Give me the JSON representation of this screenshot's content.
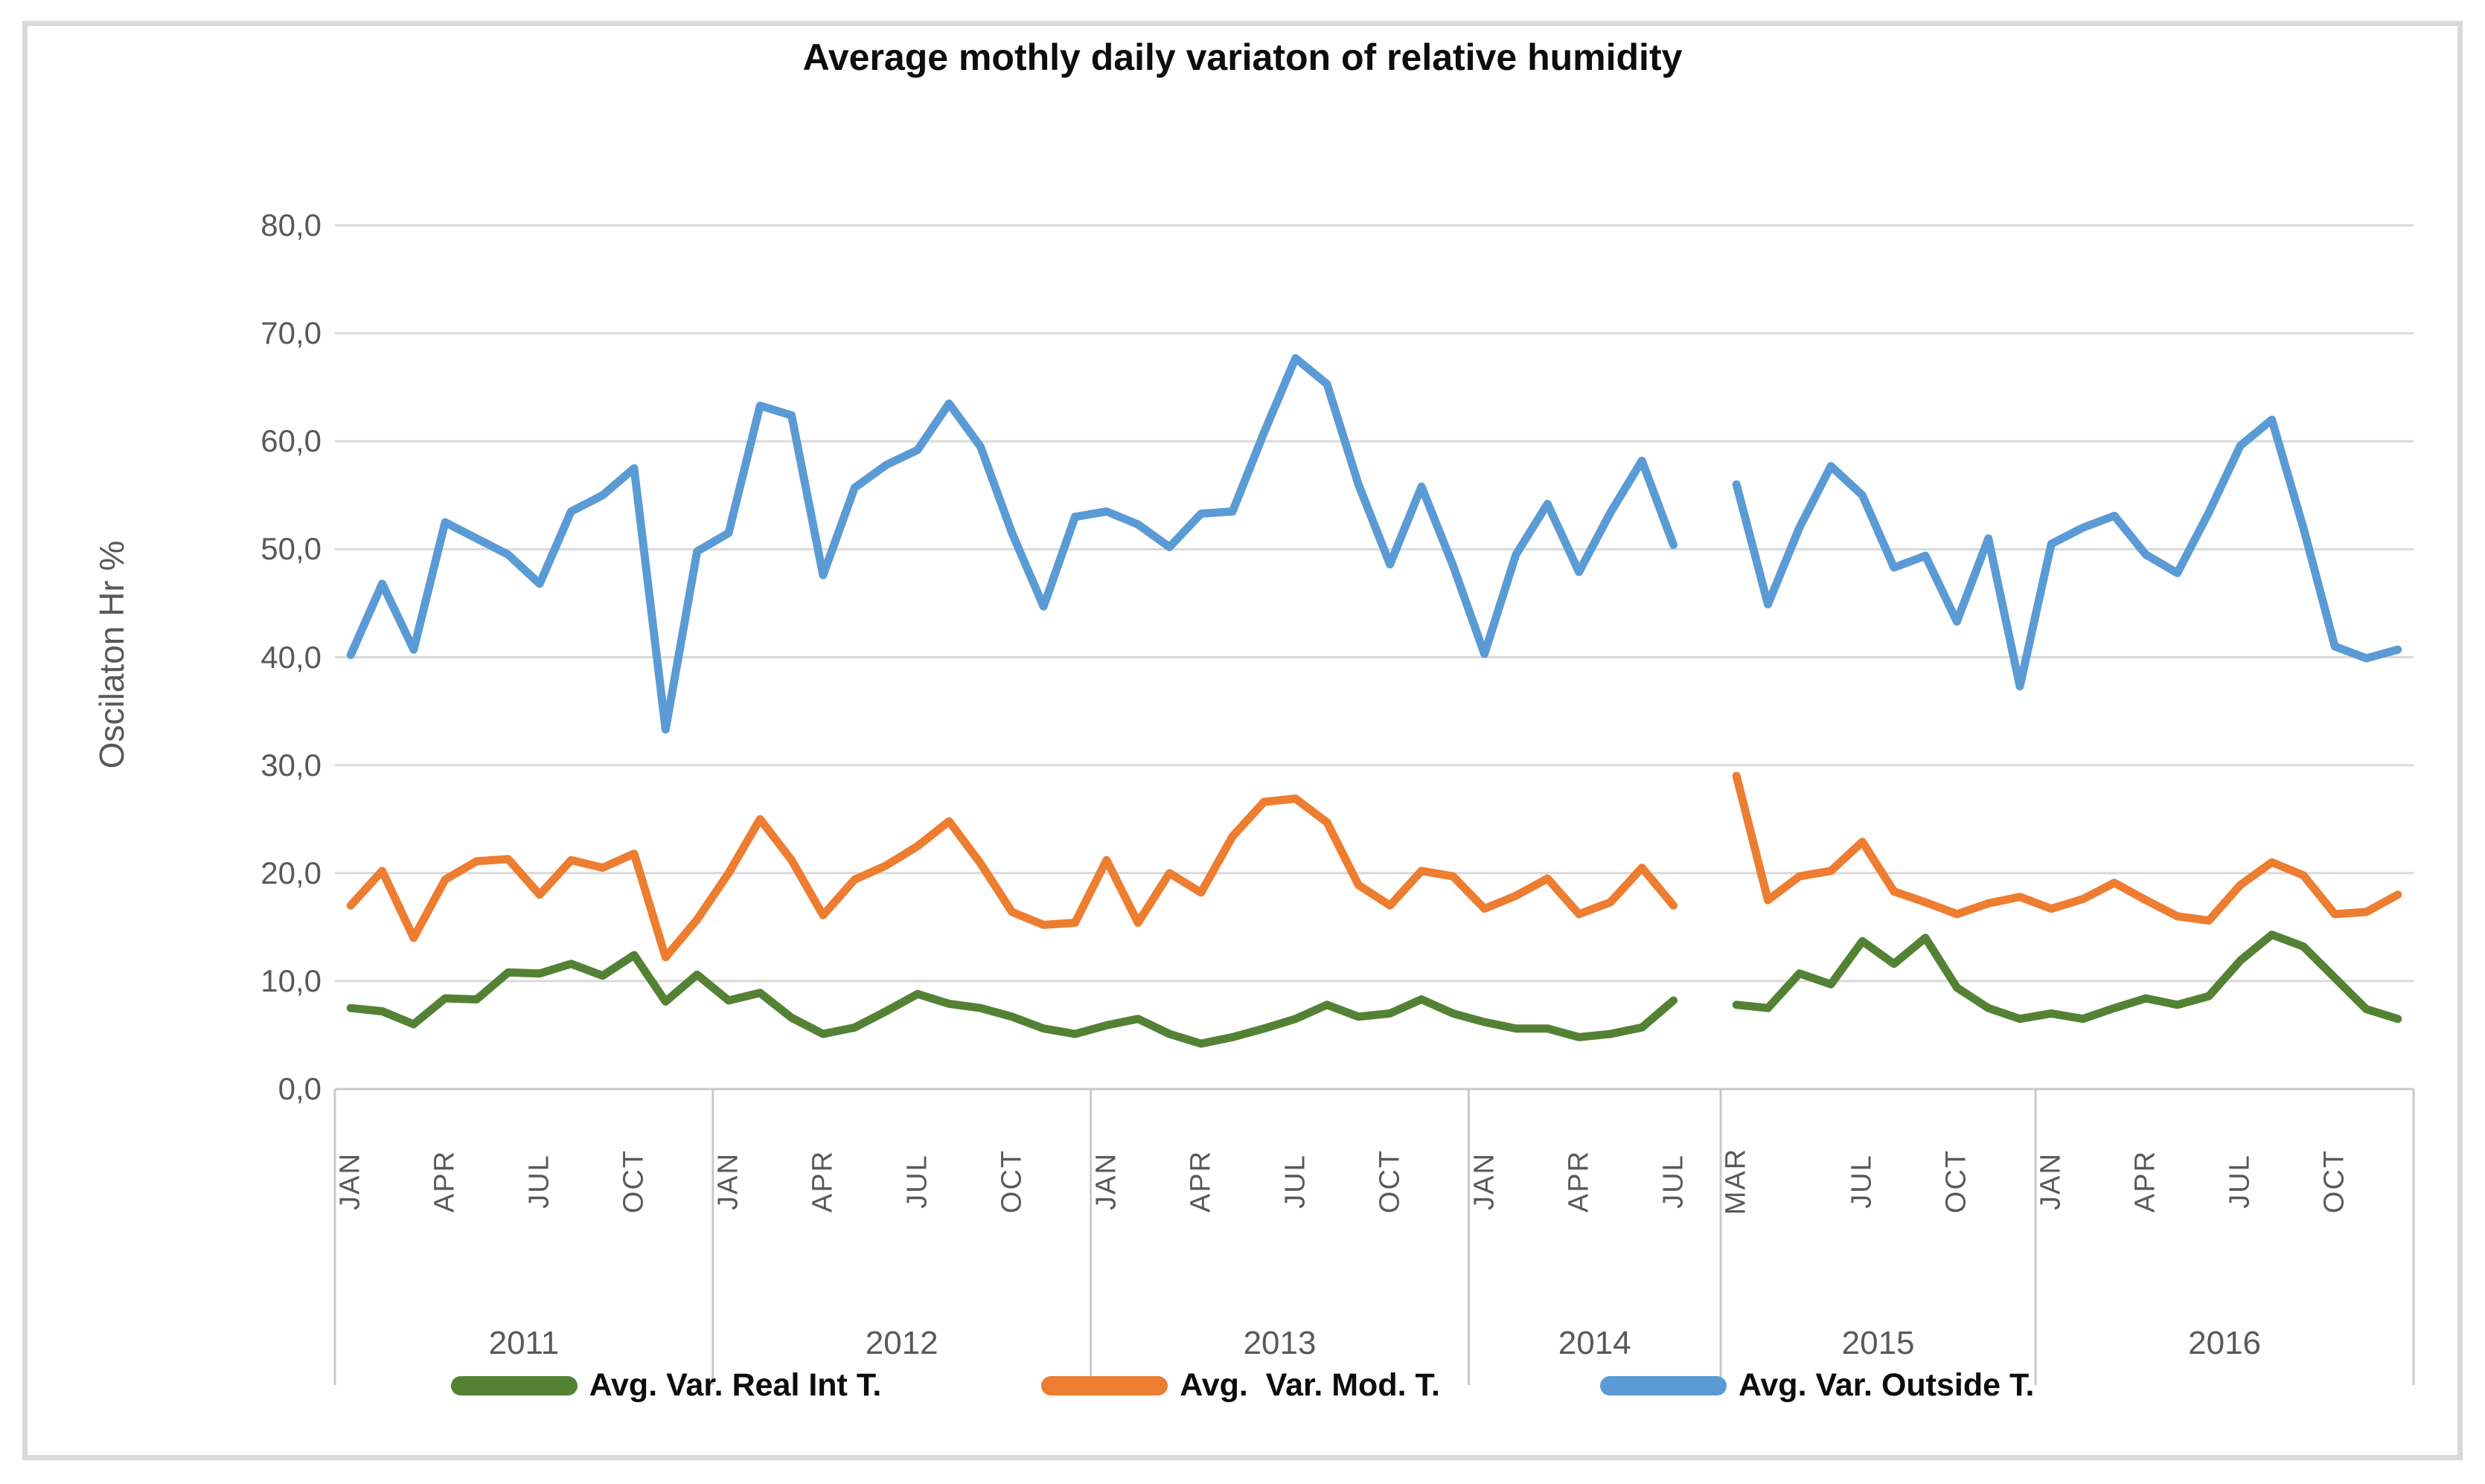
{
  "chart_data": {
    "type": "line",
    "title": "Average mothly daily variaton of relative humidity",
    "ylabel": "Oscilaton Hr %",
    "xlabel": "",
    "ylim": [
      0,
      80
    ],
    "ytick_step": 10,
    "ytick_labels": [
      "0,0",
      "10,0",
      "20,0",
      "30,0",
      "40,0",
      "50,0",
      "60,0",
      "70,0",
      "80,0"
    ],
    "grid": "horizontal",
    "legend_position": "bottom",
    "gridline_color": "#D9D9D9",
    "axis_line_color": "#C9C9C9",
    "axis_text_color": "#595959",
    "x_groups": [
      {
        "year": "2011",
        "slots": 12,
        "labels": [
          {
            "text": "JAN",
            "slot": 0
          },
          {
            "text": "APR",
            "slot": 3
          },
          {
            "text": "JUL",
            "slot": 6
          },
          {
            "text": "OCT",
            "slot": 9
          }
        ]
      },
      {
        "year": "2012",
        "slots": 12,
        "labels": [
          {
            "text": "JAN",
            "slot": 0
          },
          {
            "text": "APR",
            "slot": 3
          },
          {
            "text": "JUL",
            "slot": 6
          },
          {
            "text": "OCT",
            "slot": 9
          }
        ]
      },
      {
        "year": "2013",
        "slots": 12,
        "labels": [
          {
            "text": "JAN",
            "slot": 0
          },
          {
            "text": "APR",
            "slot": 3
          },
          {
            "text": "JUL",
            "slot": 6
          },
          {
            "text": "OCT",
            "slot": 9
          }
        ]
      },
      {
        "year": "2014",
        "slots": 8,
        "labels": [
          {
            "text": "JAN",
            "slot": 0
          },
          {
            "text": "APR",
            "slot": 3
          },
          {
            "text": "JUL",
            "slot": 6
          }
        ]
      },
      {
        "year": "2015",
        "slots": 10,
        "labels": [
          {
            "text": "MAR",
            "slot": 0
          },
          {
            "text": "JUL",
            "slot": 4
          },
          {
            "text": "OCT",
            "slot": 7
          }
        ]
      },
      {
        "year": "2016",
        "slots": 12,
        "labels": [
          {
            "text": "JAN",
            "slot": 0
          },
          {
            "text": "APR",
            "slot": 3
          },
          {
            "text": "JUL",
            "slot": 6
          },
          {
            "text": "OCT",
            "slot": 9
          }
        ]
      }
    ],
    "series": [
      {
        "name": "Avg. Var. Real Int T.",
        "color": "#548235",
        "values": [
          7.5,
          7.2,
          6.0,
          8.4,
          8.3,
          10.8,
          10.7,
          11.6,
          10.5,
          12.4,
          8.1,
          10.6,
          8.2,
          8.9,
          6.6,
          5.1,
          5.7,
          7.2,
          8.8,
          7.9,
          7.5,
          6.7,
          5.6,
          5.1,
          5.9,
          6.5,
          5.1,
          4.2,
          4.8,
          5.6,
          6.5,
          7.8,
          6.7,
          7.0,
          8.3,
          7.0,
          6.2,
          5.6,
          5.6,
          4.8,
          5.1,
          5.7,
          8.2,
          null,
          7.8,
          7.5,
          10.7,
          9.7,
          13.7,
          11.6,
          14.0,
          9.4,
          7.5,
          6.5,
          7.0,
          6.5,
          7.5,
          8.4,
          7.8,
          8.6,
          11.9,
          14.3,
          13.2,
          10.3,
          7.4,
          6.5
        ]
      },
      {
        "name": "Avg.  Var. Mod. T.",
        "color": "#ED7D31",
        "values": [
          17.0,
          20.2,
          14.0,
          19.4,
          21.1,
          21.3,
          18.0,
          21.2,
          20.5,
          21.8,
          12.2,
          15.7,
          20.0,
          25.0,
          21.2,
          16.1,
          19.4,
          20.7,
          22.5,
          24.8,
          20.9,
          16.4,
          15.2,
          15.4,
          21.2,
          15.4,
          20.0,
          18.2,
          23.4,
          26.6,
          26.9,
          24.7,
          18.9,
          17.0,
          20.2,
          19.7,
          16.7,
          17.9,
          19.5,
          16.2,
          17.3,
          20.5,
          17.0,
          null,
          29.0,
          17.5,
          19.7,
          20.2,
          22.9,
          18.3,
          17.3,
          16.2,
          17.2,
          17.8,
          16.7,
          17.6,
          19.1,
          17.5,
          16.0,
          15.6,
          18.9,
          21.0,
          19.8,
          16.2,
          16.4,
          18.0
        ]
      },
      {
        "name": "Avg. Var. Outside T.",
        "color": "#5B9BD5",
        "values": [
          40.2,
          46.8,
          40.7,
          52.5,
          51.0,
          49.5,
          46.8,
          53.5,
          55.0,
          57.5,
          33.3,
          49.8,
          51.5,
          63.3,
          62.4,
          47.6,
          55.7,
          57.8,
          59.2,
          63.5,
          59.5,
          51.5,
          44.7,
          53.0,
          53.5,
          52.3,
          50.2,
          53.3,
          53.5,
          60.8,
          67.7,
          65.3,
          56.0,
          48.6,
          55.8,
          48.5,
          40.3,
          49.5,
          54.2,
          47.9,
          53.4,
          58.2,
          50.4,
          null,
          56.0,
          44.9,
          52.0,
          57.7,
          55.0,
          48.3,
          49.4,
          43.3,
          51.0,
          37.3,
          50.5,
          52.0,
          53.1,
          49.5,
          47.8,
          53.4,
          59.6,
          62.0,
          52.0,
          41.0,
          39.9,
          40.7
        ]
      }
    ]
  }
}
